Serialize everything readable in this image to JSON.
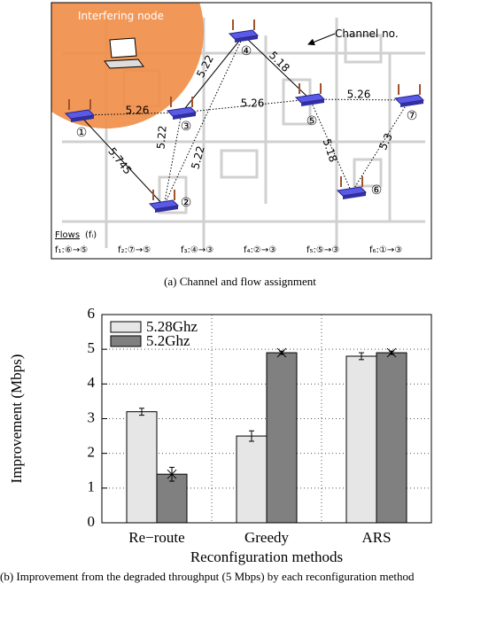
{
  "diagram": {
    "annotation": "Interfering node",
    "channel_note": "Channel no.",
    "nodes": [
      {
        "label": "①"
      },
      {
        "label": "②"
      },
      {
        "label": "③"
      },
      {
        "label": "④"
      },
      {
        "label": "⑤"
      },
      {
        "label": "⑥"
      },
      {
        "label": "⑦"
      }
    ],
    "edges": [
      {
        "label": "5.26"
      },
      {
        "label": "5.26"
      },
      {
        "label": "5.26"
      },
      {
        "label": "5.745"
      },
      {
        "label": "5.22"
      },
      {
        "label": "5.22"
      },
      {
        "label": "5.22"
      },
      {
        "label": "5.18"
      },
      {
        "label": "5.18"
      },
      {
        "label": "5.3"
      }
    ],
    "flows_title": "Flows",
    "flows_symbol": "(fᵢ)",
    "flows": [
      "f₁:⑥→⑤",
      "f₂:⑦→⑤",
      "f₃:④→③",
      "f₄:②→③",
      "f₅:⑤→③",
      "f₆:①→③"
    ],
    "caption": "(a) Channel and flow assignment"
  },
  "chart_data": {
    "type": "bar",
    "categories": [
      "Re−route",
      "Greedy",
      "ARS"
    ],
    "series": [
      {
        "name": "5.28Ghz",
        "color": "#e6e6e6",
        "values": [
          3.2,
          2.5,
          4.8
        ],
        "errors": [
          0.1,
          0.15,
          0.1
        ]
      },
      {
        "name": "5.2Ghz",
        "color": "#808080",
        "values": [
          1.4,
          4.9,
          4.9
        ],
        "errors": [
          0.2,
          0.05,
          0.05
        ]
      }
    ],
    "ylabel": "Improvement (Mbps)",
    "xlabel": "Reconfiguration methods",
    "ylim": [
      0,
      6
    ],
    "yticks": [
      0,
      1,
      2,
      3,
      4,
      5,
      6
    ],
    "grid": true,
    "legend": "upper left"
  },
  "caption": "(b) Improvement from the degraded throughput (5 Mbps) by each reconfiguration method"
}
